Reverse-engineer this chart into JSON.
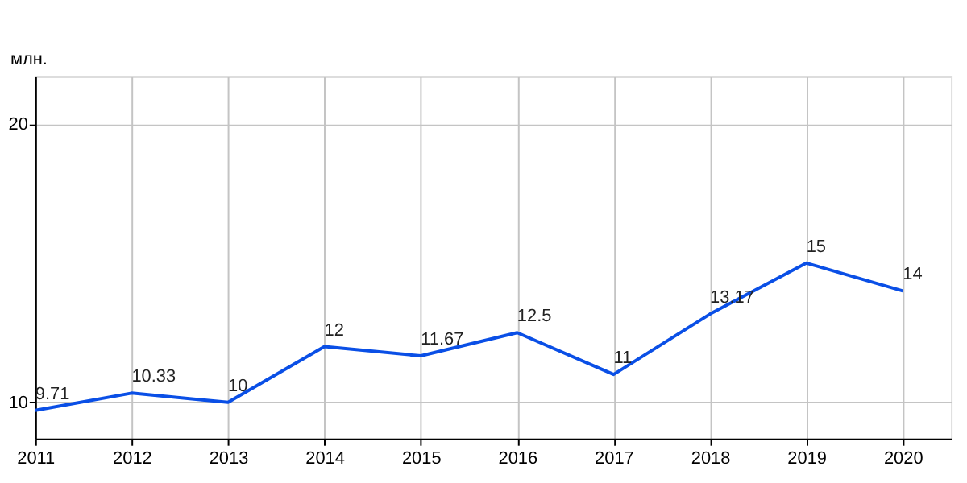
{
  "chart_data": {
    "type": "line",
    "ylabel": "млн.",
    "x": [
      2011,
      2012,
      2013,
      2014,
      2015,
      2016,
      2017,
      2018,
      2019,
      2020
    ],
    "series": [
      {
        "color": "#0a4fe6",
        "values": [
          9.71,
          10.33,
          10,
          12,
          11.67,
          12.5,
          11,
          13.17,
          15,
          14
        ]
      }
    ],
    "xlim": [
      2011,
      2020.5
    ],
    "xticks": [
      2011,
      2012,
      2013,
      2014,
      2015,
      2016,
      2017,
      2018,
      2019,
      2020
    ],
    "ylim": [
      8.7,
      21.7
    ],
    "yticks": [
      10,
      20
    ],
    "grid": true,
    "data_labels": true,
    "marker": "none",
    "line_style": "solid"
  }
}
